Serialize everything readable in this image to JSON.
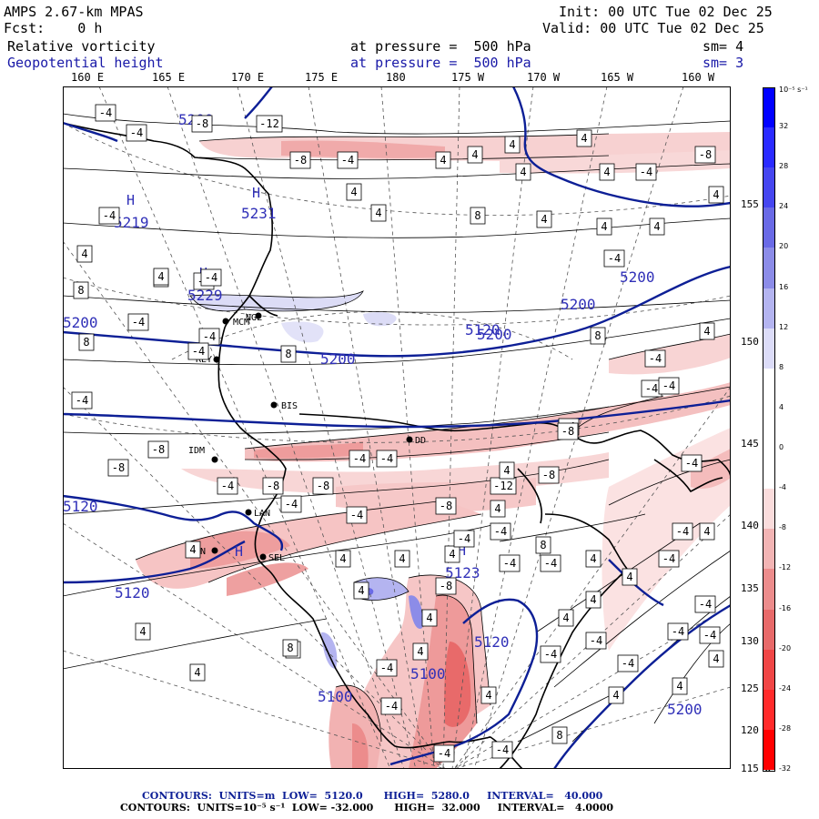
{
  "header": {
    "model": "AMPS 2.67-km MPAS",
    "fcst": "Fcst:    0 h",
    "init": "Init: 00 UTC Tue 02 Dec 25",
    "valid": "Valid: 00 UTC Tue 02 Dec 25",
    "field1": "Relative vorticity",
    "field2": "Geopotential height",
    "pressure1": "at pressure =  500 hPa",
    "pressure2": "at pressure =  500 hPa",
    "sm1": "sm= 4",
    "sm2": "sm= 3"
  },
  "lon_labels": [
    "160 E",
    "165 E",
    "170 E",
    "175 E",
    "180",
    "175 W",
    "170 W",
    "165 W",
    "160 W"
  ],
  "lat_labels": [
    "155 W",
    "150 W",
    "145 W",
    "140 W",
    "135 W",
    "130 W",
    "125 W",
    "120 W",
    "115 W"
  ],
  "colorbar": {
    "unit": "10⁻⁵ s⁻¹",
    "ticks": [
      "32",
      "28",
      "24",
      "20",
      "16",
      "12",
      "8",
      "4",
      "0",
      "-4",
      "-8",
      "-12",
      "-16",
      "-20",
      "-24",
      "-28",
      "-32"
    ],
    "colors": [
      "#0000ff",
      "#2a2aff",
      "#4646f0",
      "#6a6ae6",
      "#8c8ce8",
      "#b4b4f0",
      "#dcdcf8",
      "#ffffff",
      "#ffffff",
      "#ffffff",
      "#fadcdc",
      "#f2b4b4",
      "#ec8c8c",
      "#e86a6a",
      "#f04646",
      "#ff2a2a",
      "#ff0000"
    ]
  },
  "stations": [
    {
      "id": "REY",
      "label": "REY"
    },
    {
      "id": "BIS",
      "label": "BIS"
    },
    {
      "id": "IDM",
      "label": "IDM"
    },
    {
      "id": "LAN",
      "label": "LAN"
    },
    {
      "id": "WHN",
      "label": "WHN"
    },
    {
      "id": "SEL",
      "label": "SEL"
    },
    {
      "id": "MCM",
      "label": "MCM"
    },
    {
      "id": "DD",
      "label": "DD"
    },
    {
      "id": "NGL",
      "label": "NGL"
    }
  ],
  "height_labels": [
    "5200",
    "5219",
    "5231",
    "5229",
    "5200",
    "5200",
    "5200",
    "5200",
    "5200",
    "5120",
    "5120",
    "5120",
    "5123",
    "5120",
    "5100",
    "5100",
    "5200"
  ],
  "highs": [
    "H",
    "H",
    "H",
    "H",
    "H"
  ],
  "vort_labels": [
    "-4",
    "-4",
    "-8",
    "-12",
    "-8",
    "-4",
    "4",
    "4",
    "4",
    "4",
    "4",
    "4",
    "-4",
    "-8",
    "4",
    "4",
    "8",
    "4",
    "4",
    "4",
    "4",
    "-4",
    "-4",
    "4",
    "4",
    "4",
    "-4",
    "-4",
    "8",
    "8",
    "8",
    "-4",
    "-4",
    "-4",
    "-4",
    "-8",
    "-8",
    "-4",
    "-8",
    "-4",
    "-8",
    "-4",
    "-4",
    "4",
    "-4",
    "-4",
    "-4",
    "4",
    "-4",
    "-8",
    "-4",
    "-12",
    "-8",
    "4",
    "-8",
    "4",
    "4",
    "4",
    "-4",
    "-4",
    "-4",
    "-4",
    "4",
    "4",
    "4",
    "4",
    "-4",
    "4",
    "8",
    "4",
    "4",
    "4",
    "4",
    "-8",
    "-4",
    "-4",
    "-4",
    "-4",
    "8",
    "4",
    "-4",
    "4",
    "-4",
    "-4",
    "-4",
    "-4",
    "4",
    "4",
    "-4",
    "-4",
    "4",
    "-4",
    "8",
    "4",
    "4",
    "4",
    "8",
    "-4"
  ],
  "footer": {
    "line1": "CONTOURS:  UNITS=m  LOW=  5120.0      HIGH=  5280.0     INTERVAL=   40.000",
    "line2": "CONTOURS:  UNITS=10⁻⁵ s⁻¹  LOW= -32.000      HIGH=  32.000     INTERVAL=   4.0000"
  }
}
